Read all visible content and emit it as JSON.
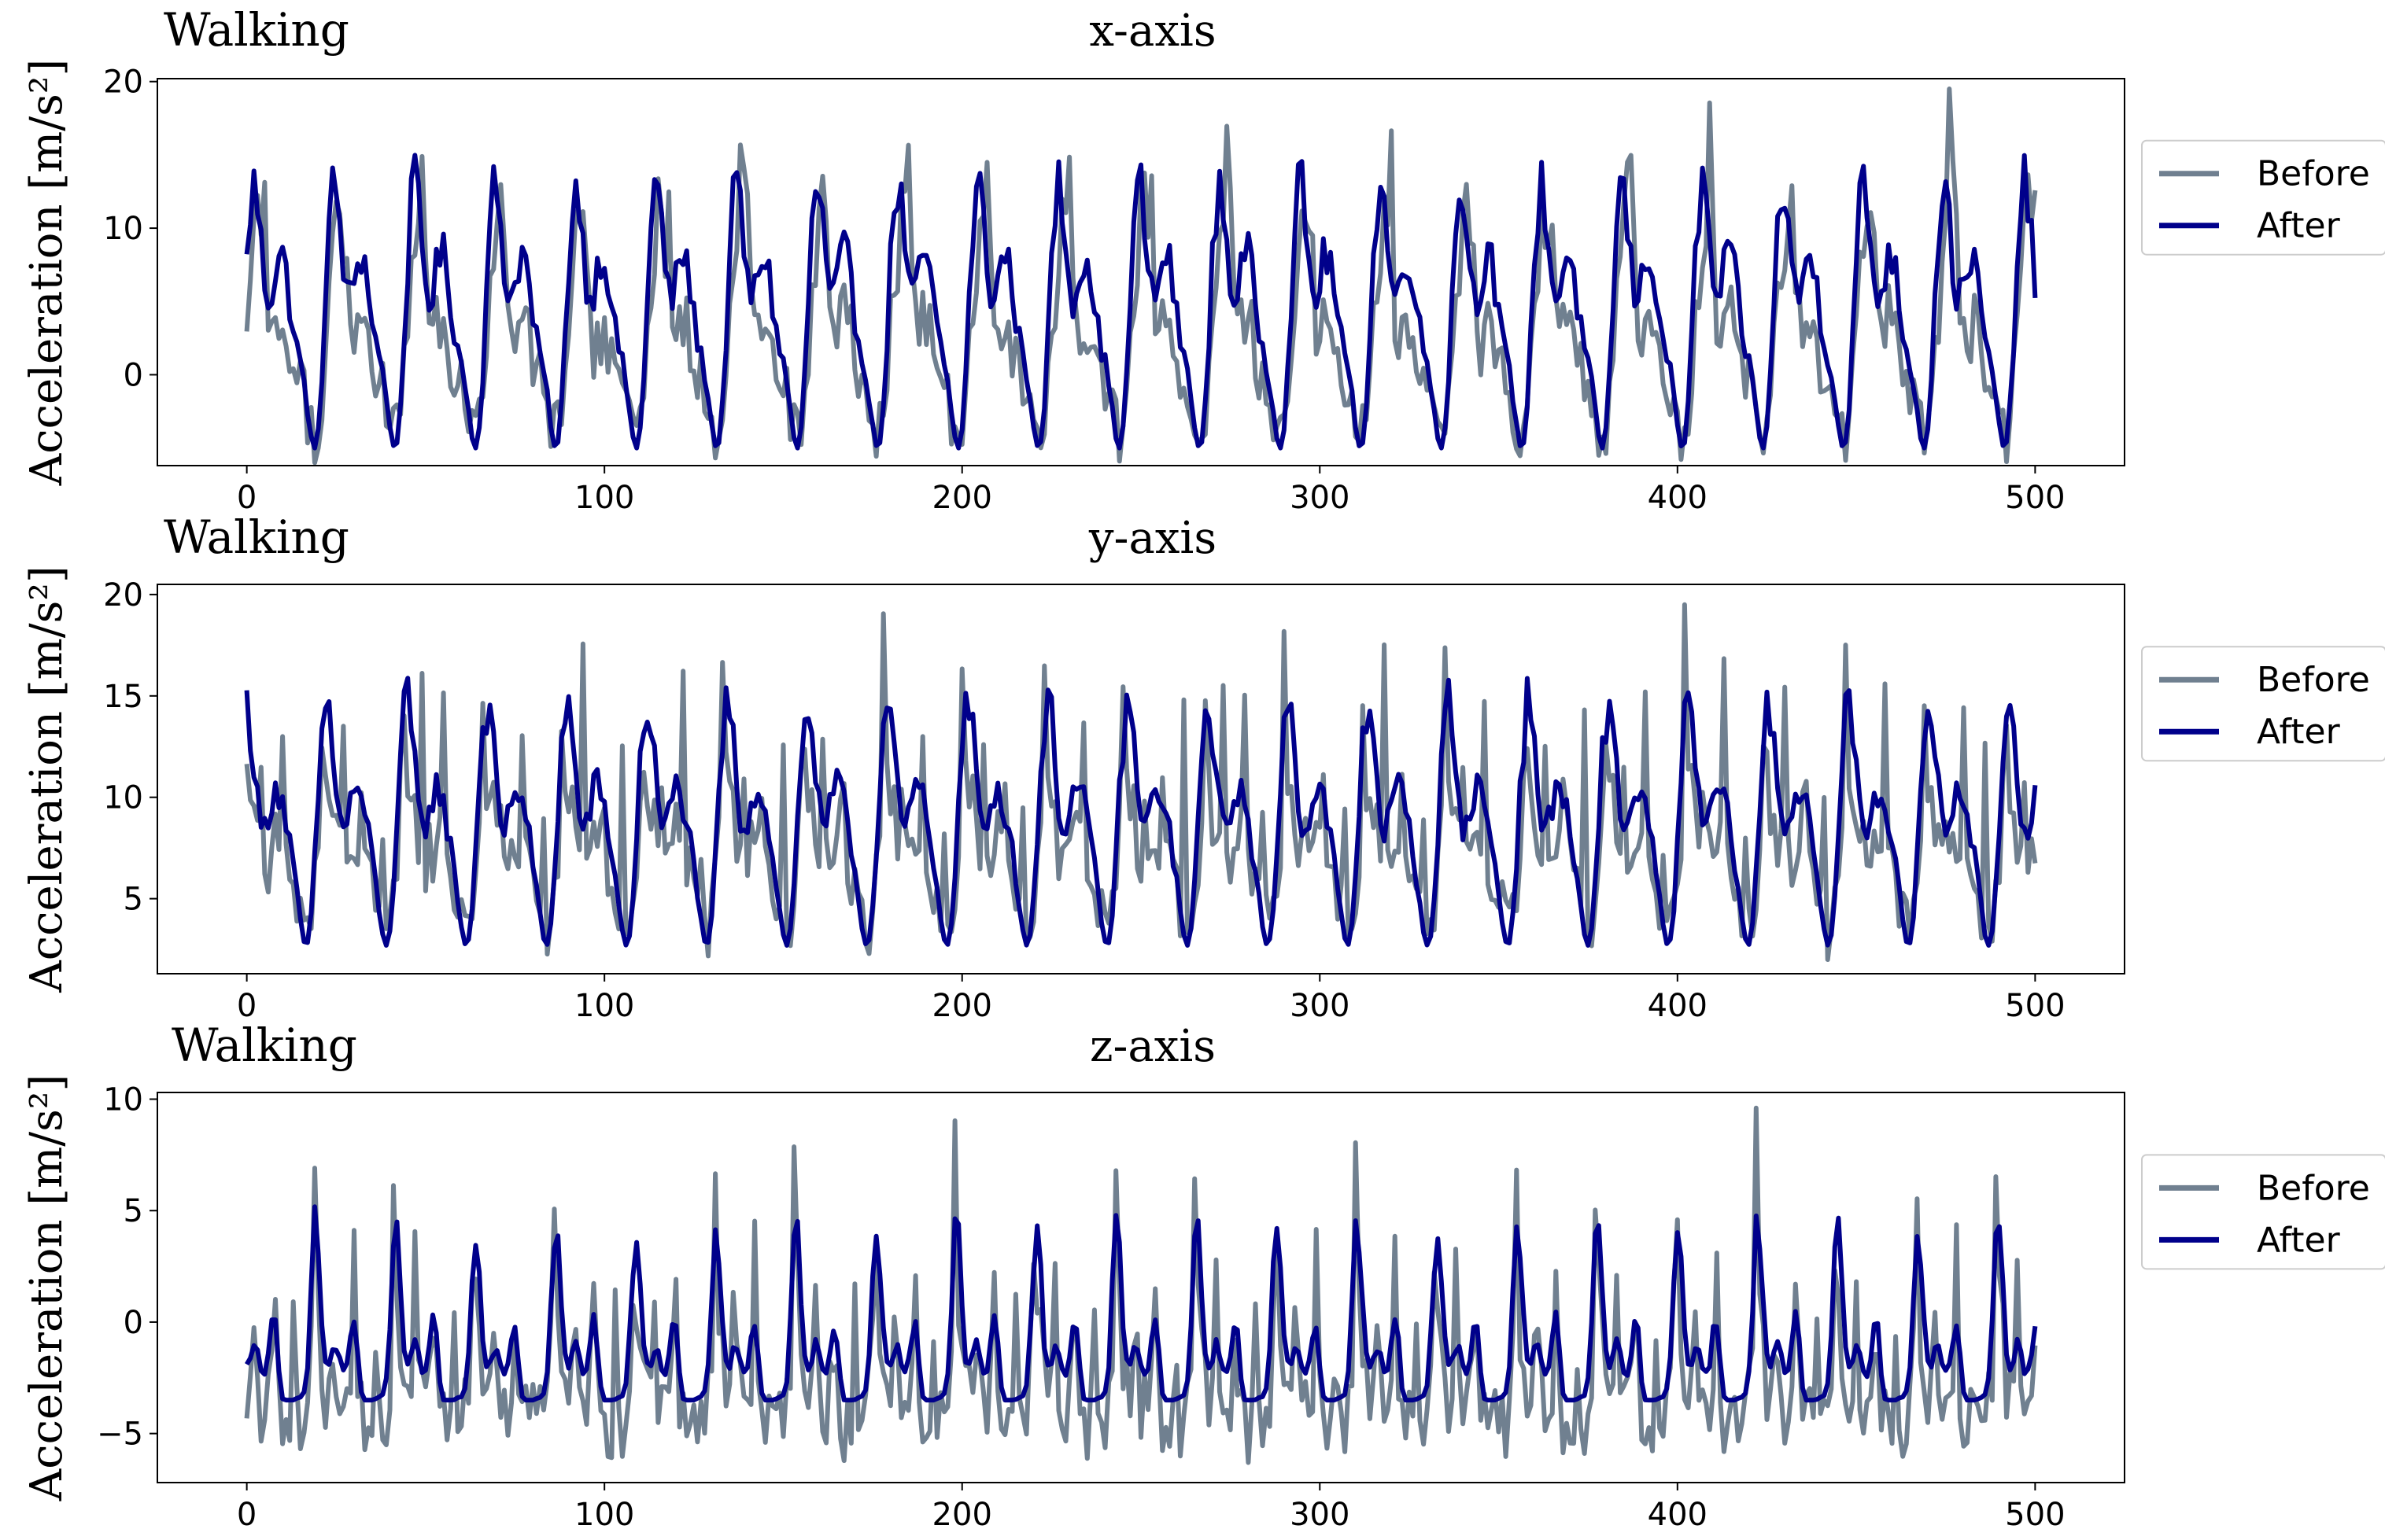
{
  "figure": {
    "legend_labels": [
      "Before",
      "After"
    ],
    "colors": {
      "before": "#708090",
      "after": "#00008b"
    }
  },
  "chart_data": [
    {
      "type": "line",
      "activity": "Walking",
      "title": "x-axis",
      "ylabel": "Acceleration [m/s²]",
      "xlabel": "",
      "xlim": [
        -25,
        525
      ],
      "ylim": [
        -6.2,
        20.2
      ],
      "xticks": [
        0,
        100,
        200,
        300,
        400,
        500
      ],
      "yticks": [
        20,
        10,
        0
      ],
      "ytick_labels": [
        "20",
        "10",
        "0"
      ],
      "xtick_labels": [
        "0",
        "100",
        "200",
        "300",
        "400",
        "500"
      ],
      "legend": "right-outside",
      "grid": false,
      "gen": {
        "before": {
          "period": 22,
          "phase": 0,
          "noise": 2.2,
          "peaks": [
            [
              0.02,
              8
            ],
            [
              0.07,
              12
            ],
            [
              0.12,
              7
            ],
            [
              0.16,
              16
            ],
            [
              0.26,
              19
            ],
            [
              0.35,
              13
            ],
            [
              0.44,
              17
            ],
            [
              0.52,
              18
            ],
            [
              0.61,
              14
            ],
            [
              0.7,
              10
            ],
            [
              0.78,
              12
            ],
            [
              0.86,
              19
            ],
            [
              0.93,
              16
            ]
          ],
          "base": 2.5
        },
        "after": {
          "period": 22,
          "phase": 0,
          "base": 2.5
        }
      },
      "series": [
        {
          "name": "Before",
          "key": "before",
          "min": -6,
          "max": 19.5
        },
        {
          "name": "After",
          "key": "after",
          "min": -5,
          "max": 15
        }
      ]
    },
    {
      "type": "line",
      "activity": "Walking",
      "title": "y-axis",
      "ylabel": "Acceleration [m/s²]",
      "xlabel": "",
      "xlim": [
        -25,
        525
      ],
      "ylim": [
        1.3,
        20.5
      ],
      "xticks": [
        0,
        100,
        200,
        300,
        400,
        500
      ],
      "yticks": [
        20,
        15,
        10,
        5
      ],
      "ytick_labels": [
        "20",
        "15",
        "10",
        "5"
      ],
      "xtick_labels": [
        "0",
        "100",
        "200",
        "300",
        "400",
        "500"
      ],
      "legend": "right-outside",
      "grid": false,
      "series": [
        {
          "name": "Before",
          "key": "before",
          "min": 2,
          "max": 19.5
        },
        {
          "name": "After",
          "key": "after",
          "min": 2.7,
          "max": 16
        }
      ]
    },
    {
      "type": "line",
      "activity": "Walking",
      "title": "z-axis",
      "ylabel": "Acceleration [m/s²]",
      "xlabel": "",
      "xlim": [
        -25,
        525
      ],
      "ylim": [
        -7.2,
        10.3
      ],
      "xticks": [
        0,
        100,
        200,
        300,
        400,
        500
      ],
      "yticks": [
        10,
        5,
        0,
        -5
      ],
      "ytick_labels": [
        "10",
        "5",
        "0",
        "−5"
      ],
      "xtick_labels": [
        "0",
        "100",
        "200",
        "300",
        "400",
        "500"
      ],
      "legend": "right-outside",
      "grid": false,
      "series": [
        {
          "name": "Before",
          "key": "before",
          "min": -6.3,
          "max": 9.6
        },
        {
          "name": "After",
          "key": "after",
          "min": -3.5,
          "max": 5.4
        }
      ]
    }
  ]
}
